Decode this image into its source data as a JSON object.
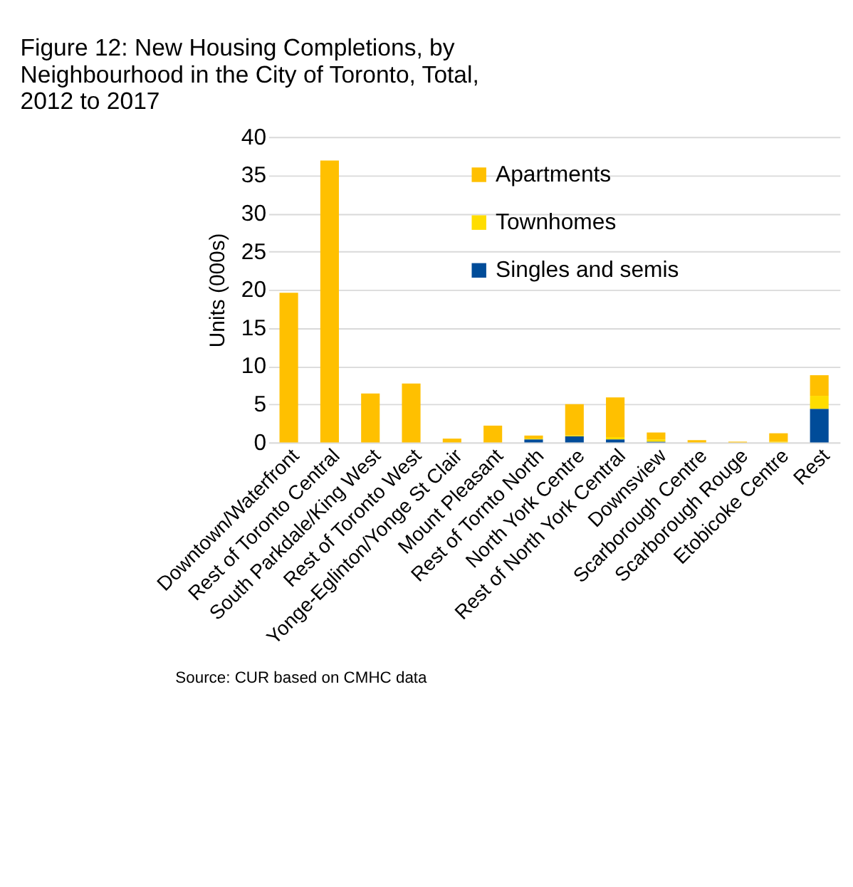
{
  "chart_data": {
    "type": "bar",
    "stacked": true,
    "title": "Figure 12: New Housing Completions, by Neighbourhood in the City of Toronto, Total, 2012 to 2017",
    "ylabel": "Units (000s)",
    "categories": [
      "Downtown/Waterfront",
      "Rest of Toronto Central",
      "South Parkdale/King West",
      "Rest of Toronto West",
      "Yonge-Eglinton/Yonge St Clair",
      "Mount Pleasant",
      "Rest of Tornto North",
      "North York Centre",
      "Rest of North York Central",
      "Downsview",
      "Scarborough Centre",
      "Scarborough Rouge",
      "Etobicoke Centre",
      "Rest"
    ],
    "series": [
      {
        "name": "Singles and semis",
        "color": "#004c99",
        "values": [
          0,
          0,
          0,
          0,
          0,
          0,
          0.4,
          0.8,
          0.4,
          0.1,
          0,
          0,
          0,
          4.4
        ]
      },
      {
        "name": "Townhomes",
        "color": "#ffdd00",
        "values": [
          0,
          0,
          0,
          0,
          0,
          0,
          0.1,
          0.1,
          0.3,
          0.3,
          0,
          0,
          0.1,
          1.7
        ]
      },
      {
        "name": "Apartments",
        "color": "#ffc000",
        "values": [
          19.6,
          36.9,
          6.4,
          7.7,
          0.5,
          2.2,
          0.4,
          4.1,
          5.2,
          0.9,
          0.3,
          0.1,
          1.1,
          2.7
        ]
      }
    ],
    "ylim": [
      0,
      40
    ],
    "yticks": [
      0,
      5,
      10,
      15,
      20,
      25,
      30,
      35,
      40
    ],
    "grid": "y",
    "legend": "top",
    "annotations": [
      "Source: CUR based on CMHC data"
    ]
  }
}
